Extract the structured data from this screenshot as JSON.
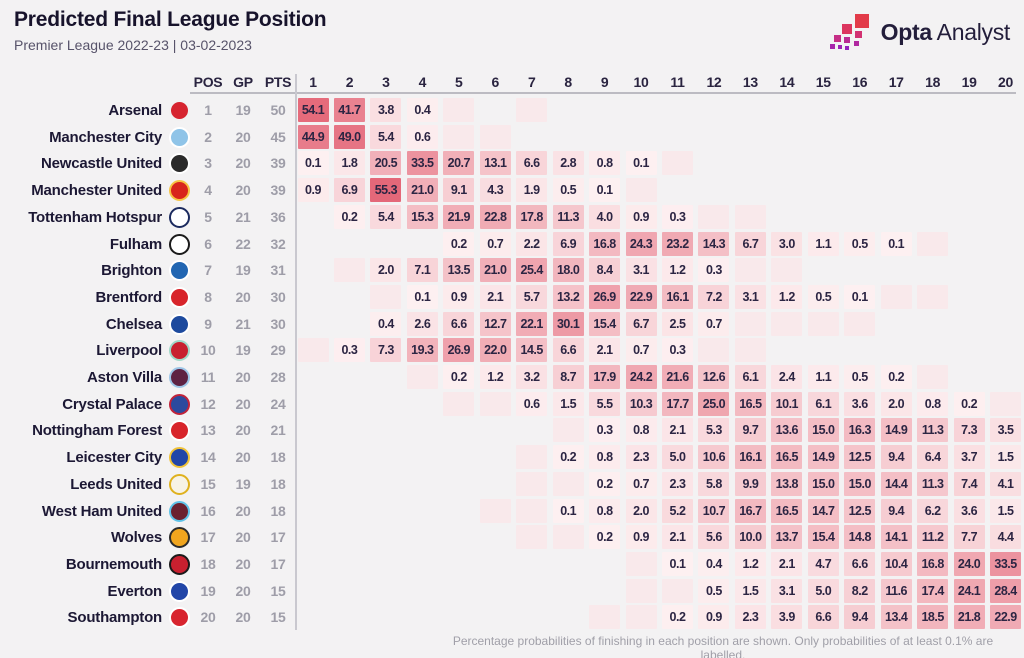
{
  "header": {
    "title": "Predicted Final League Position",
    "subtitle": "Premier League 2022-23 | 03-02-2023"
  },
  "brand": {
    "name_bold": "Opta",
    "name_light": "Analyst"
  },
  "footer": {
    "note": "Percentage probabilities of finishing in each position are shown. Only probabilities of at least 0.1% are labelled."
  },
  "table_headers": {
    "pos": "POS",
    "gp": "GP",
    "pts": "PTS"
  },
  "chart_data": {
    "type": "heatmap",
    "title": "Predicted Final League Position",
    "subtitle": "Premier League 2022-23 | 03-02-2023",
    "x_axis": "Predicted finishing position (1-20)",
    "y_axis": "Team (current table order)",
    "positions": [
      "1",
      "2",
      "3",
      "4",
      "5",
      "6",
      "7",
      "8",
      "9",
      "10",
      "11",
      "12",
      "13",
      "14",
      "15",
      "16",
      "17",
      "18",
      "19",
      "20"
    ],
    "color_scale": {
      "zero_color": "#f3f2f3",
      "low_color": "#fdf1f2",
      "high_color": "#e46778",
      "max_value": 56,
      "gamma": 0.75,
      "tint_color": "#f9e9eb"
    },
    "legend": "unlabelled tinted cells represent probabilities below 0.1%",
    "teams": [
      {
        "name": "Arsenal",
        "pos": 1,
        "gp": 19,
        "pts": 50,
        "crest": [
          "#d6242f",
          "#f1f1f1"
        ],
        "probs": {
          "1": "54.1",
          "2": "41.7",
          "3": "3.8",
          "4": "0.4"
        },
        "faint_positions": [
          5,
          7
        ]
      },
      {
        "name": "Manchester City",
        "pos": 2,
        "gp": 20,
        "pts": 45,
        "crest": [
          "#8fc4e8",
          "#ffffff"
        ],
        "probs": {
          "1": "44.9",
          "2": "49.0",
          "3": "5.4",
          "4": "0.6"
        },
        "faint_positions": [
          5,
          6
        ]
      },
      {
        "name": "Newcastle United",
        "pos": 3,
        "gp": 20,
        "pts": 39,
        "crest": [
          "#2b2b2b",
          "#ffffff"
        ],
        "probs": {
          "1": "0.1",
          "2": "1.8",
          "3": "20.5",
          "4": "33.5",
          "5": "20.7",
          "6": "13.1",
          "7": "6.6",
          "8": "2.8",
          "9": "0.8",
          "10": "0.1"
        },
        "faint_positions": [
          11
        ]
      },
      {
        "name": "Manchester United",
        "pos": 4,
        "gp": 20,
        "pts": 39,
        "crest": [
          "#d8251c",
          "#f6c443"
        ],
        "probs": {
          "1": "0.9",
          "2": "6.9",
          "3": "55.3",
          "4": "21.0",
          "5": "9.1",
          "6": "4.3",
          "7": "1.9",
          "8": "0.5",
          "9": "0.1"
        },
        "faint_positions": [
          10
        ]
      },
      {
        "name": "Tottenham Hotspur",
        "pos": 5,
        "gp": 21,
        "pts": 36,
        "crest": [
          "#ffffff",
          "#1b2a5e"
        ],
        "probs": {
          "2": "0.2",
          "3": "5.4",
          "4": "15.3",
          "5": "21.9",
          "6": "22.8",
          "7": "17.8",
          "8": "11.3",
          "9": "4.0",
          "10": "0.9",
          "11": "0.3"
        },
        "faint_positions": [
          12,
          13
        ]
      },
      {
        "name": "Fulham",
        "pos": 6,
        "gp": 22,
        "pts": 32,
        "crest": [
          "#ffffff",
          "#1a1a1a"
        ],
        "probs": {
          "5": "0.2",
          "6": "0.7",
          "7": "2.2",
          "8": "6.9",
          "9": "16.8",
          "10": "24.3",
          "11": "23.2",
          "12": "14.3",
          "13": "6.7",
          "14": "3.0",
          "15": "1.1",
          "16": "0.5",
          "17": "0.1"
        },
        "faint_positions": [
          18
        ]
      },
      {
        "name": "Brighton",
        "pos": 7,
        "gp": 19,
        "pts": 31,
        "crest": [
          "#2266b2",
          "#ffffff"
        ],
        "probs": {
          "3": "2.0",
          "4": "7.1",
          "5": "13.5",
          "6": "21.0",
          "7": "25.4",
          "8": "18.0",
          "9": "8.4",
          "10": "3.1",
          "11": "1.2",
          "12": "0.3"
        },
        "faint_positions": [
          2,
          13,
          14
        ]
      },
      {
        "name": "Brentford",
        "pos": 8,
        "gp": 20,
        "pts": 30,
        "crest": [
          "#d8252b",
          "#ffffff"
        ],
        "probs": {
          "4": "0.1",
          "5": "0.9",
          "6": "2.1",
          "7": "5.7",
          "8": "13.2",
          "9": "26.9",
          "10": "22.9",
          "11": "16.1",
          "12": "7.2",
          "13": "3.1",
          "14": "1.2",
          "15": "0.5",
          "16": "0.1"
        },
        "faint_positions": [
          3,
          17,
          18
        ]
      },
      {
        "name": "Chelsea",
        "pos": 9,
        "gp": 21,
        "pts": 30,
        "crest": [
          "#1d4a9e",
          "#ffffff"
        ],
        "probs": {
          "3": "0.4",
          "4": "2.6",
          "5": "6.6",
          "6": "12.7",
          "7": "22.1",
          "8": "30.1",
          "9": "15.4",
          "10": "6.7",
          "11": "2.5",
          "12": "0.7"
        },
        "faint_positions": [
          13,
          14,
          15,
          16
        ]
      },
      {
        "name": "Liverpool",
        "pos": 10,
        "gp": 19,
        "pts": 29,
        "crest": [
          "#c8202f",
          "#9fd8c8"
        ],
        "probs": {
          "2": "0.3",
          "3": "7.3",
          "4": "19.3",
          "5": "26.9",
          "6": "22.0",
          "7": "14.5",
          "8": "6.6",
          "9": "2.1",
          "10": "0.7",
          "11": "0.3"
        },
        "faint_positions": [
          1,
          12,
          13
        ]
      },
      {
        "name": "Aston Villa",
        "pos": 11,
        "gp": 20,
        "pts": 28,
        "crest": [
          "#5e2243",
          "#9ec6e8"
        ],
        "probs": {
          "5": "0.2",
          "6": "1.2",
          "7": "3.2",
          "8": "8.7",
          "9": "17.9",
          "10": "24.2",
          "11": "21.6",
          "12": "12.6",
          "13": "6.1",
          "14": "2.4",
          "15": "1.1",
          "16": "0.5",
          "17": "0.2"
        },
        "faint_positions": [
          4,
          18
        ]
      },
      {
        "name": "Crystal Palace",
        "pos": 12,
        "gp": 20,
        "pts": 24,
        "crest": [
          "#2b4a9e",
          "#c0233a"
        ],
        "probs": {
          "7": "0.6",
          "8": "1.5",
          "9": "5.5",
          "10": "10.3",
          "11": "17.7",
          "12": "25.0",
          "13": "16.5",
          "14": "10.1",
          "15": "6.1",
          "16": "3.6",
          "17": "2.0",
          "18": "0.8",
          "19": "0.2"
        },
        "faint_positions": [
          5,
          6,
          20
        ]
      },
      {
        "name": "Nottingham Forest",
        "pos": 13,
        "gp": 20,
        "pts": 21,
        "crest": [
          "#d8252b",
          "#ffffff"
        ],
        "probs": {
          "9": "0.3",
          "10": "0.8",
          "11": "2.1",
          "12": "5.3",
          "13": "9.7",
          "14": "13.6",
          "15": "15.0",
          "16": "16.3",
          "17": "14.9",
          "18": "11.3",
          "19": "7.3",
          "20": "3.5"
        },
        "faint_positions": [
          8
        ]
      },
      {
        "name": "Leicester City",
        "pos": 14,
        "gp": 20,
        "pts": 18,
        "crest": [
          "#2246a8",
          "#f0c238"
        ],
        "probs": {
          "8": "0.2",
          "9": "0.8",
          "10": "2.3",
          "11": "5.0",
          "12": "10.6",
          "13": "16.1",
          "14": "16.5",
          "15": "14.9",
          "16": "12.5",
          "17": "9.4",
          "18": "6.4",
          "19": "3.7",
          "20": "1.5"
        },
        "faint_positions": [
          7
        ]
      },
      {
        "name": "Leeds United",
        "pos": 15,
        "gp": 19,
        "pts": 18,
        "crest": [
          "#f7f3e6",
          "#dfb11e"
        ],
        "probs": {
          "9": "0.2",
          "10": "0.7",
          "11": "2.3",
          "12": "5.8",
          "13": "9.9",
          "14": "13.8",
          "15": "15.0",
          "16": "15.0",
          "17": "14.4",
          "18": "11.3",
          "19": "7.4",
          "20": "4.1"
        },
        "faint_positions": [
          7,
          8
        ]
      },
      {
        "name": "West Ham United",
        "pos": 16,
        "gp": 20,
        "pts": 18,
        "crest": [
          "#6b2230",
          "#5fc3e8"
        ],
        "probs": {
          "8": "0.1",
          "9": "0.8",
          "10": "2.0",
          "11": "5.2",
          "12": "10.7",
          "13": "16.7",
          "14": "16.5",
          "15": "14.7",
          "16": "12.5",
          "17": "9.4",
          "18": "6.2",
          "19": "3.6",
          "20": "1.5"
        },
        "faint_positions": [
          6,
          7
        ]
      },
      {
        "name": "Wolves",
        "pos": 17,
        "gp": 20,
        "pts": 17,
        "crest": [
          "#f0a51e",
          "#2b2b2b"
        ],
        "probs": {
          "9": "0.2",
          "10": "0.9",
          "11": "2.1",
          "12": "5.6",
          "13": "10.0",
          "14": "13.7",
          "15": "15.4",
          "16": "14.8",
          "17": "14.1",
          "18": "11.2",
          "19": "7.7",
          "20": "4.4"
        },
        "faint_positions": [
          7,
          8
        ]
      },
      {
        "name": "Bournemouth",
        "pos": 18,
        "gp": 20,
        "pts": 17,
        "crest": [
          "#c8202f",
          "#1a1a1a"
        ],
        "probs": {
          "11": "0.1",
          "12": "0.4",
          "13": "1.2",
          "14": "2.1",
          "15": "4.7",
          "16": "6.6",
          "17": "10.4",
          "18": "16.8",
          "19": "24.0",
          "20": "33.5"
        },
        "faint_positions": [
          10
        ]
      },
      {
        "name": "Everton",
        "pos": 19,
        "gp": 20,
        "pts": 15,
        "crest": [
          "#2246a8",
          "#ffffff"
        ],
        "probs": {
          "12": "0.5",
          "13": "1.5",
          "14": "3.1",
          "15": "5.0",
          "16": "8.2",
          "17": "11.6",
          "18": "17.4",
          "19": "24.1",
          "20": "28.4"
        },
        "faint_positions": [
          10,
          11
        ]
      },
      {
        "name": "Southampton",
        "pos": 20,
        "gp": 20,
        "pts": 15,
        "crest": [
          "#d8252f",
          "#ffffff"
        ],
        "probs": {
          "11": "0.2",
          "12": "0.9",
          "13": "2.3",
          "14": "3.9",
          "15": "6.6",
          "16": "9.4",
          "17": "13.4",
          "18": "18.5",
          "19": "21.8",
          "20": "22.9"
        },
        "faint_positions": [
          9,
          10
        ]
      }
    ]
  }
}
